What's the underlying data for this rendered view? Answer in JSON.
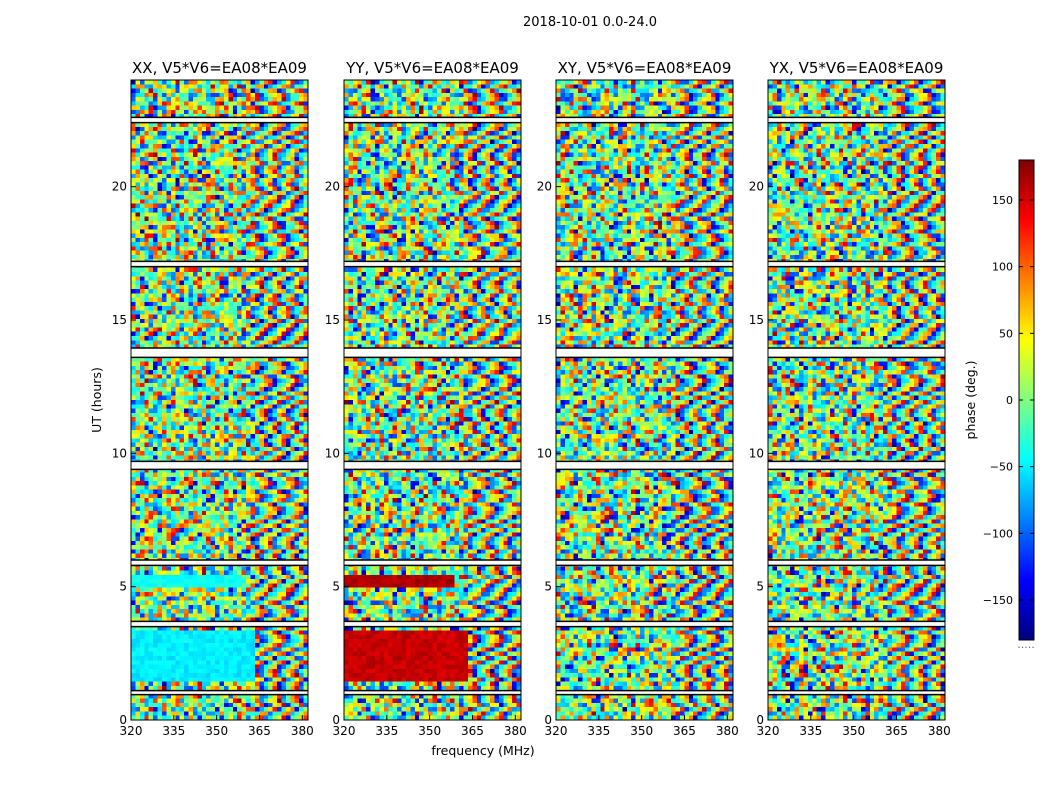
{
  "figure": {
    "suptitle": "2018-10-01 0.0-24.0",
    "xlabel": "frequency (MHz)",
    "ylabel": "UT (hours)",
    "colorbar_label": "phase (deg.)",
    "colorbar_footer": "....."
  },
  "chart_data": {
    "type": "heatmap",
    "colormap": "jet",
    "x_ticks": [
      320,
      335,
      350,
      365,
      380
    ],
    "y_ticks": [
      0,
      5,
      10,
      15,
      20
    ],
    "xlim": [
      320,
      382
    ],
    "ylim": [
      0,
      24
    ],
    "clim": [
      -180,
      180
    ],
    "colorbar_ticks": [
      150,
      100,
      50,
      0,
      -50,
      -100,
      -150
    ],
    "colorbar_tick_labels": [
      "150",
      "100",
      "50",
      "0",
      "−50",
      "−100",
      "−150"
    ],
    "flagged_time_ranges": [
      [
        0.95,
        1.1
      ],
      [
        3.5,
        3.7
      ],
      [
        5.8,
        6.0
      ],
      [
        9.4,
        9.7
      ],
      [
        13.6,
        13.95
      ],
      [
        17.0,
        17.2
      ],
      [
        22.4,
        22.6
      ]
    ],
    "panels": [
      {
        "title": "XX, V5*V6=EA08*EA09",
        "pol": "XX"
      },
      {
        "title": "YY, V5*V6=EA08*EA09",
        "pol": "YY"
      },
      {
        "title": "XY, V5*V6=EA08*EA09",
        "pol": "XY"
      },
      {
        "title": "YX, V5*V6=EA08*EA09",
        "pol": "YX"
      }
    ]
  }
}
